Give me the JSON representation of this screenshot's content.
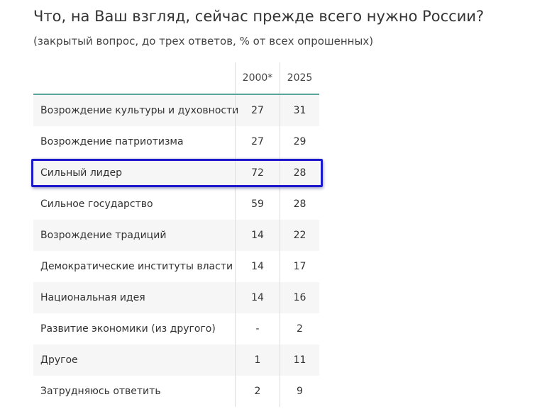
{
  "title": "Что, на Ваш взгляд, сейчас прежде всего нужно России?",
  "subtitle": "(закрытый вопрос, до трех ответов, % от всех опрошенных)",
  "table": {
    "columns": [
      "2000*",
      "2025"
    ],
    "rows": [
      {
        "label": "Возрождение культуры и духовности",
        "v2000": "27",
        "v2025": "31"
      },
      {
        "label": "Возрождение патриотизма",
        "v2000": "27",
        "v2025": "29"
      },
      {
        "label": "Сильный лидер",
        "v2000": "72",
        "v2025": "28"
      },
      {
        "label": "Сильное государство",
        "v2000": "59",
        "v2025": "28"
      },
      {
        "label": "Возрождение традиций",
        "v2000": "14",
        "v2025": "22"
      },
      {
        "label": "Демократические институты власти",
        "v2000": "14",
        "v2025": "17"
      },
      {
        "label": "Национальная идея",
        "v2000": "14",
        "v2025": "16"
      },
      {
        "label": "Развитие экономики (из другого)",
        "v2000": "-",
        "v2025": "2"
      },
      {
        "label": "Другое",
        "v2000": "1",
        "v2025": "11"
      },
      {
        "label": "Затрудняюсь ответить",
        "v2000": "2",
        "v2025": "9"
      }
    ]
  },
  "highlight_color": "#1a1acc",
  "header_rule_color": "#5aa39a"
}
